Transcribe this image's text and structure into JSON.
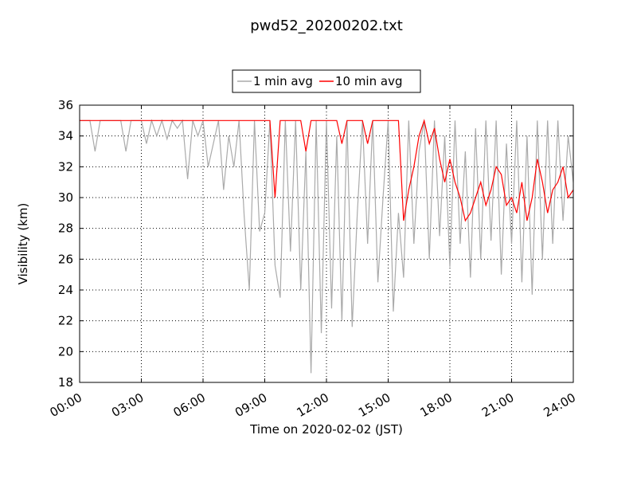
{
  "chart_data": {
    "type": "line",
    "title": "pwd52_20200202.txt",
    "x_label": "Time on 2020-02-02 (JST)",
    "y_label": "Visibility (km)",
    "x": [
      0,
      0.25,
      0.5,
      0.75,
      1,
      1.25,
      1.5,
      1.75,
      2,
      2.25,
      2.5,
      2.75,
      3,
      3.25,
      3.5,
      3.75,
      4,
      4.25,
      4.5,
      4.75,
      5,
      5.25,
      5.5,
      5.75,
      6,
      6.25,
      6.5,
      6.75,
      7,
      7.25,
      7.5,
      7.75,
      8,
      8.25,
      8.5,
      8.75,
      9,
      9.25,
      9.5,
      9.75,
      10,
      10.25,
      10.5,
      10.75,
      11,
      11.25,
      11.5,
      11.75,
      12,
      12.25,
      12.5,
      12.75,
      13,
      13.25,
      13.5,
      13.75,
      14,
      14.25,
      14.5,
      14.75,
      15,
      15.25,
      15.5,
      15.75,
      16,
      16.25,
      16.5,
      16.75,
      17,
      17.25,
      17.5,
      17.75,
      18,
      18.25,
      18.5,
      18.75,
      19,
      19.25,
      19.5,
      19.75,
      20,
      20.25,
      20.5,
      20.75,
      21,
      21.25,
      21.5,
      21.75,
      22,
      22.25,
      22.5,
      22.75,
      23,
      23.25,
      23.5,
      23.75,
      24
    ],
    "series": [
      {
        "name": "1 min avg",
        "color": "#aaaaaa",
        "values": [
          35,
          35,
          35,
          33,
          35,
          35,
          35,
          35,
          35,
          33,
          35,
          35,
          35,
          33.5,
          35,
          34,
          35,
          33.8,
          35,
          34.5,
          35,
          31.2,
          35,
          34,
          35,
          32,
          33.5,
          35,
          30.5,
          34,
          32,
          35,
          28.8,
          24,
          35,
          27.8,
          29,
          35,
          25.6,
          23.5,
          35,
          26.5,
          35,
          24,
          33,
          18.6,
          35,
          21.2,
          35,
          22.8,
          34,
          22,
          35,
          21.6,
          29,
          35,
          27,
          35,
          24.5,
          30,
          35,
          22.6,
          29,
          24.8,
          35,
          27,
          33,
          35,
          26,
          35,
          27.5,
          34,
          25.5,
          35,
          27,
          33,
          24.8,
          34.5,
          26,
          35,
          27.2,
          35,
          25,
          33.5,
          27,
          35,
          24.5,
          34,
          23.7,
          35,
          26,
          35,
          27,
          35,
          28.5,
          34,
          31
        ]
      },
      {
        "name": "10 min avg",
        "color": "#ff0000",
        "values": [
          35,
          35,
          35,
          35,
          35,
          35,
          35,
          35,
          35,
          35,
          35,
          35,
          35,
          35,
          35,
          35,
          35,
          35,
          35,
          35,
          35,
          35,
          35,
          35,
          35,
          35,
          35,
          35,
          35,
          35,
          35,
          35,
          35,
          35,
          35,
          35,
          35,
          35,
          30,
          35,
          35,
          35,
          35,
          35,
          33,
          35,
          35,
          35,
          35,
          35,
          35,
          33.5,
          35,
          35,
          35,
          35,
          33.5,
          35,
          35,
          35,
          35,
          35,
          35,
          28.5,
          30.5,
          32,
          34,
          35,
          33.5,
          34.5,
          32.5,
          31,
          32.5,
          31,
          30,
          28.5,
          29,
          30,
          31,
          29.5,
          30.5,
          32,
          31.5,
          29.5,
          30,
          29,
          31,
          28.5,
          30,
          32.5,
          31,
          29,
          30.5,
          31,
          32,
          30,
          30.5
        ]
      }
    ],
    "xlim": [
      0,
      24
    ],
    "xticks": [
      {
        "value": 0,
        "label": "00:00"
      },
      {
        "value": 3,
        "label": "03:00"
      },
      {
        "value": 6,
        "label": "06:00"
      },
      {
        "value": 9,
        "label": "09:00"
      },
      {
        "value": 12,
        "label": "12:00"
      },
      {
        "value": 15,
        "label": "15:00"
      },
      {
        "value": 18,
        "label": "18:00"
      },
      {
        "value": 21,
        "label": "21:00"
      },
      {
        "value": 24,
        "label": "24:00"
      }
    ],
    "ylim": [
      18,
      36
    ],
    "yticks": [
      18,
      20,
      22,
      24,
      26,
      28,
      30,
      32,
      34,
      36
    ],
    "grid": true,
    "legend": "top"
  }
}
